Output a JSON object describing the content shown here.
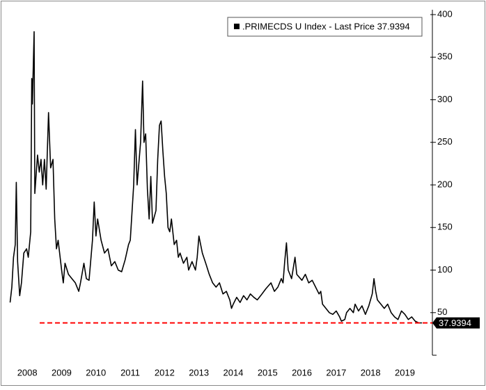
{
  "chart_data": {
    "type": "line",
    "series": [
      {
        "name": ".PRIMECDS U Index - Last Price 37.9394",
        "color": "#000000",
        "x": [
          2008.0,
          2008.05,
          2008.1,
          2008.15,
          2008.18,
          2008.22,
          2008.28,
          2008.33,
          2008.4,
          2008.48,
          2008.53,
          2008.6,
          2008.63,
          2008.65,
          2008.7,
          2008.72,
          2008.8,
          2008.85,
          2008.9,
          2008.95,
          2009.0,
          2009.05,
          2009.12,
          2009.18,
          2009.25,
          2009.3,
          2009.35,
          2009.4,
          2009.5,
          2009.55,
          2009.6,
          2009.7,
          2009.8,
          2009.9,
          2010.0,
          2010.05,
          2010.15,
          2010.22,
          2010.3,
          2010.4,
          2010.45,
          2010.5,
          2010.55,
          2010.65,
          2010.75,
          2010.85,
          2010.95,
          2011.05,
          2011.15,
          2011.25,
          2011.35,
          2011.45,
          2011.5,
          2011.6,
          2011.65,
          2011.7,
          2011.8,
          2011.86,
          2011.9,
          2011.95,
          2012.0,
          2012.05,
          2012.1,
          2012.15,
          2012.25,
          2012.3,
          2012.35,
          2012.4,
          2012.45,
          2012.5,
          2012.55,
          2012.6,
          2012.65,
          2012.7,
          2012.78,
          2012.85,
          2012.9,
          2012.95,
          2013.05,
          2013.15,
          2013.2,
          2013.3,
          2013.4,
          2013.45,
          2013.5,
          2013.6,
          2013.7,
          2013.8,
          2013.9,
          2014.0,
          2014.1,
          2014.2,
          2014.3,
          2014.4,
          2014.45,
          2014.5,
          2014.6,
          2014.7,
          2014.8,
          2014.9,
          2015.0,
          2015.1,
          2015.2,
          2015.3,
          2015.45,
          2015.6,
          2015.7,
          2015.8,
          2015.9,
          2015.95,
          2016.0,
          2016.05,
          2016.1,
          2016.2,
          2016.3,
          2016.35,
          2016.5,
          2016.6,
          2016.7,
          2016.8,
          2016.9,
          2017.0,
          2017.05,
          2017.1,
          2017.2,
          2017.3,
          2017.4,
          2017.5,
          2017.6,
          2017.65,
          2017.75,
          2017.8,
          2017.9,
          2018.0,
          2018.05,
          2018.15,
          2018.25,
          2018.35,
          2018.45,
          2018.55,
          2018.6,
          2018.65,
          2018.7,
          2018.8,
          2018.9,
          2019.0,
          2019.1,
          2019.2,
          2019.3,
          2019.4,
          2019.5,
          2019.6,
          2019.7,
          2019.8,
          2019.9,
          2020.0
        ],
        "values": [
          62,
          80,
          115,
          130,
          203,
          110,
          70,
          85,
          120,
          125,
          115,
          145,
          325,
          295,
          380,
          190,
          235,
          215,
          230,
          200,
          230,
          195,
          285,
          220,
          230,
          160,
          125,
          135,
          100,
          85,
          108,
          95,
          90,
          85,
          75,
          85,
          108,
          90,
          88,
          135,
          180,
          140,
          160,
          135,
          120,
          125,
          105,
          110,
          100,
          98,
          112,
          130,
          135,
          200,
          265,
          200,
          250,
          322,
          250,
          260,
          195,
          160,
          210,
          155,
          170,
          230,
          270,
          275,
          240,
          210,
          190,
          150,
          145,
          160,
          130,
          135,
          115,
          120,
          108,
          115,
          100,
          110,
          100,
          115,
          140,
          120,
          108,
          95,
          85,
          80,
          85,
          72,
          75,
          65,
          55,
          60,
          68,
          62,
          70,
          65,
          72,
          68,
          65,
          70,
          78,
          85,
          75,
          80,
          90,
          85,
          110,
          132,
          100,
          90,
          115,
          95,
          88,
          95,
          85,
          88,
          80,
          72,
          75,
          60,
          55,
          50,
          48,
          52,
          45,
          40,
          42,
          50,
          55,
          50,
          60,
          52,
          58,
          48,
          58,
          72,
          90,
          75,
          65,
          60,
          55,
          60,
          50,
          45,
          42,
          52,
          48,
          42,
          45,
          40,
          38,
          37.9394
        ]
      }
    ],
    "last_price": 37.9394,
    "reference_line_color": "#ff0000",
    "xlim": [
      2008,
      2020.2
    ],
    "xticks": [
      2008,
      2009,
      2010,
      2011,
      2012,
      2013,
      2014,
      2015,
      2016,
      2017,
      2018,
      2019
    ],
    "ylim": [
      0,
      400
    ],
    "yticks": [
      50,
      100,
      150,
      200,
      250,
      300,
      350,
      400
    ]
  }
}
